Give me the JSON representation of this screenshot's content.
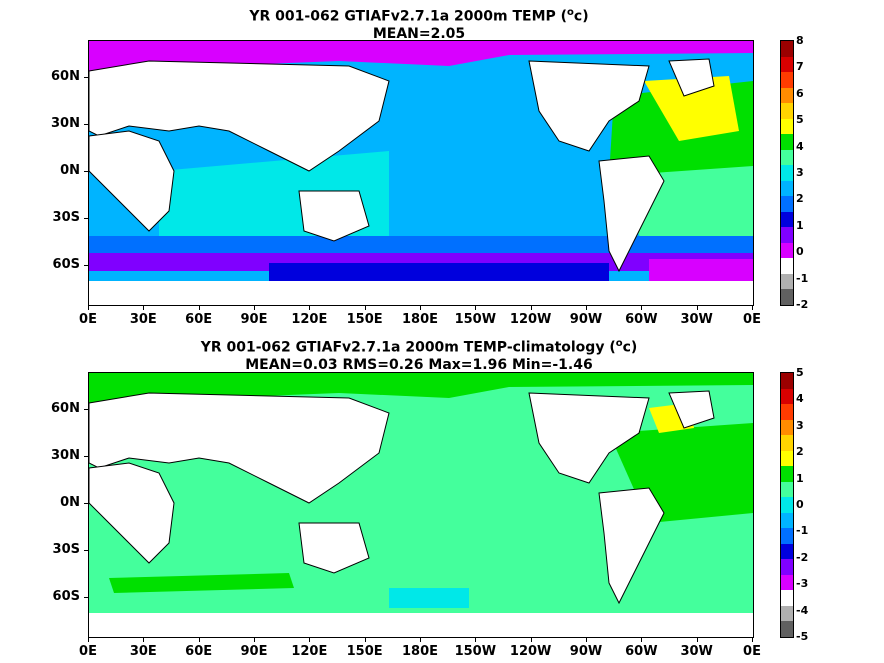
{
  "maps": [
    {
      "title_line1": "YR 001-062 GTIAFv2.7.1a 2000m TEMP (",
      "title_sup": "o",
      "title_line1_end": "c)",
      "title_line2": "MEAN=2.05",
      "colorbar_ticks": [
        "8",
        "7",
        "6",
        "5",
        "4",
        "3",
        "2",
        "1",
        "0",
        "-1",
        "-2"
      ],
      "colorbar_colors": [
        "#9b0000",
        "#d80000",
        "#ff3b00",
        "#ff8c00",
        "#ffd400",
        "#ffff00",
        "#00e000",
        "#44ff9c",
        "#00e8e8",
        "#00b4ff",
        "#0070ff",
        "#0000dd",
        "#8000ff",
        "#d800ff",
        "#ffffff",
        "#b0b0b0",
        "#606060"
      ]
    },
    {
      "title_line1": "YR 001-062 GTIAFv2.7.1a 2000m TEMP-climatology (",
      "title_sup": "o",
      "title_line1_end": "c)",
      "title_line2": "MEAN=0.03   RMS=0.26   Max=1.96   Min=-1.46",
      "colorbar_ticks": [
        "5",
        "4",
        "3",
        "2",
        "1",
        "0",
        "-1",
        "-2",
        "-3",
        "-4",
        "-5"
      ],
      "colorbar_colors": [
        "#9b0000",
        "#d80000",
        "#ff3b00",
        "#ff8c00",
        "#ffd400",
        "#ffff00",
        "#00e000",
        "#44ff9c",
        "#00e8e8",
        "#00b4ff",
        "#0070ff",
        "#0000dd",
        "#8000ff",
        "#d800ff",
        "#ffffff",
        "#b0b0b0",
        "#606060"
      ]
    }
  ],
  "lat_labels": [
    "60N",
    "30N",
    "0N",
    "30S",
    "60S"
  ],
  "lon_labels": [
    "0E",
    "30E",
    "60E",
    "90E",
    "120E",
    "150E",
    "180E",
    "150W",
    "120W",
    "90W",
    "60W",
    "30W",
    "0E"
  ]
}
